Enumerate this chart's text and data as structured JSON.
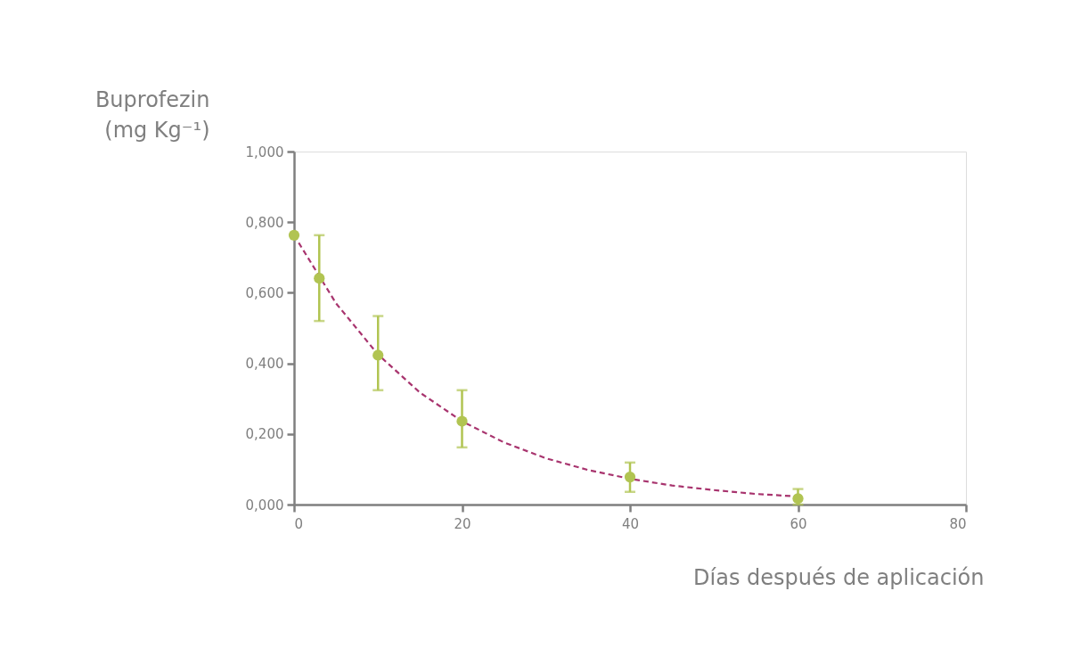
{
  "chart_data": {
    "type": "scatter",
    "xlabel": "Días después de aplicación",
    "ylabel": "Buprofezin\n(mg Kg⁻¹)",
    "xlim": [
      0,
      80
    ],
    "xticks": [
      0,
      20,
      40,
      60,
      80
    ],
    "ylim": [
      0,
      1
    ],
    "yticks": [
      {
        "value": 0,
        "label": "0,000"
      },
      {
        "value": 0.2,
        "label": "0,200"
      },
      {
        "value": 0.4,
        "label": "0,400"
      },
      {
        "value": 0.6,
        "label": "0,600"
      },
      {
        "value": 0.8,
        "label": "0,800"
      },
      {
        "value": 1,
        "label": "1,000"
      }
    ],
    "grid": false,
    "series": [
      {
        "color": "#b1c452",
        "marker": "circle",
        "x": [
          0,
          3,
          10,
          20,
          40,
          60
        ],
        "values": [
          0.763,
          0.641,
          0.423,
          0.236,
          0.078,
          0.017
        ],
        "errors": [
          null,
          [
            0.52,
            0.763
          ],
          [
            0.324,
            0.534
          ],
          [
            0.162,
            0.324
          ],
          [
            0.036,
            0.119
          ],
          [
            0.0,
            0.044
          ]
        ]
      },
      {
        "type": "line",
        "color": "#a8346e",
        "line_style": "dashed",
        "marker": "none",
        "x": [
          0,
          5,
          10,
          15,
          20,
          25,
          30,
          35,
          40,
          45,
          50,
          55,
          60
        ],
        "values": [
          0.763,
          0.57,
          0.425,
          0.317,
          0.236,
          0.176,
          0.131,
          0.098,
          0.073,
          0.054,
          0.041,
          0.03,
          0.023
        ]
      }
    ]
  }
}
